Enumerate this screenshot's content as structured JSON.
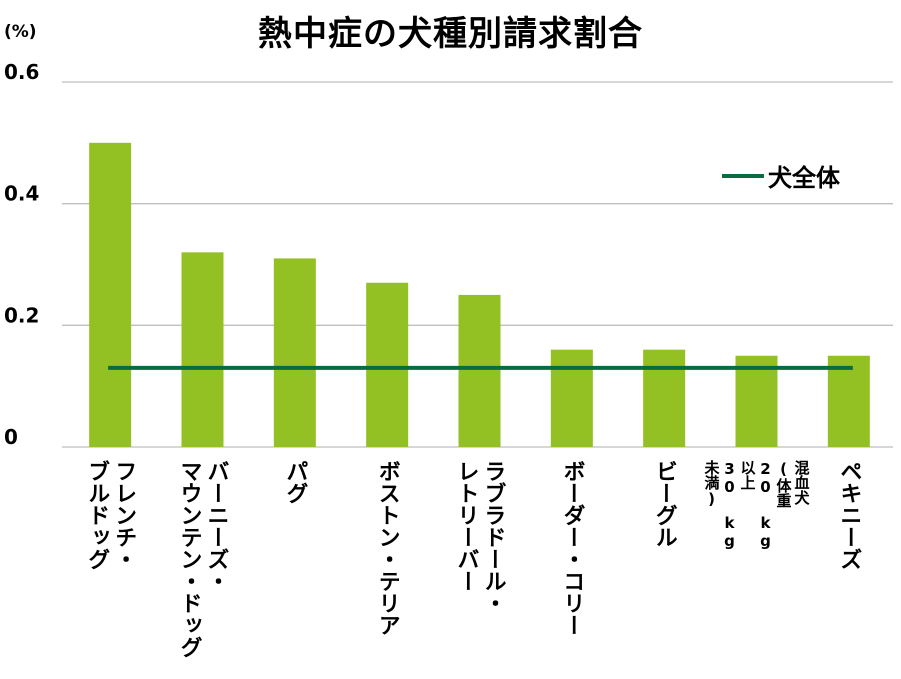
{
  "chart_data": {
    "type": "bar",
    "title": "熱中症の犬種別請求割合",
    "ylabel": "(%)",
    "xlabel": "",
    "ylim": [
      0,
      0.6
    ],
    "yticks": [
      "0",
      "0.2",
      "0.4",
      "0.6"
    ],
    "ytick_values": [
      0,
      0.2,
      0.4,
      0.6
    ],
    "grid": true,
    "bar_color": "#93c023",
    "categories": [
      "フレンチ・\nブルドッグ",
      "バーニーズ・\nマウンテン・ドッグ",
      "パグ",
      "ボストン・テリア",
      "ラブラドール・\nレトリーバー",
      "ボーダー・コリー",
      "ビーグル",
      "混血犬\n(体重\n20 kg\n以上\n30 kg\n未満)",
      "ペキニーズ"
    ],
    "values": [
      0.5,
      0.32,
      0.31,
      0.27,
      0.25,
      0.16,
      0.16,
      0.15,
      0.15
    ],
    "reference_line": {
      "name": "犬全体",
      "value": 0.13,
      "color": "#0a6b40"
    },
    "legend": "top-right"
  }
}
